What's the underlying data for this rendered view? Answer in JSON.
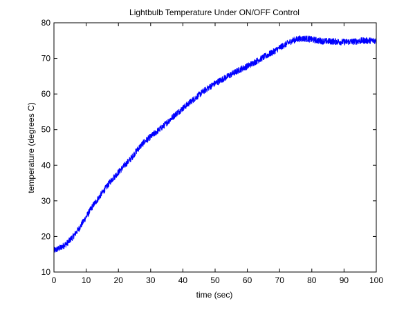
{
  "chart_data": {
    "type": "line",
    "title": "Lightbulb Temperature Under ON/OFF Control",
    "xlabel": "time (sec)",
    "ylabel": "temperature (degrees C)",
    "xlim": [
      0,
      100
    ],
    "ylim": [
      10,
      80
    ],
    "xticks": [
      0,
      10,
      20,
      30,
      40,
      50,
      60,
      70,
      80,
      90,
      100
    ],
    "yticks": [
      10,
      20,
      30,
      40,
      50,
      60,
      70,
      80
    ],
    "grid": false,
    "legend": "none",
    "line_color": "#0000ff",
    "series": [
      {
        "x": [
          0,
          2,
          4,
          6,
          8,
          10,
          12,
          14,
          16,
          18,
          20,
          22,
          24,
          26,
          28,
          30,
          32,
          34,
          36,
          38,
          40,
          42,
          44,
          46,
          48,
          50,
          52,
          54,
          56,
          58,
          60,
          62,
          64,
          66,
          68,
          70,
          72,
          74,
          76,
          78,
          80,
          82,
          84,
          86,
          88,
          90,
          92,
          94,
          96,
          98,
          100
        ],
        "y": [
          16,
          16.8,
          18,
          20,
          22.5,
          25.5,
          28.5,
          31,
          33.5,
          36,
          38,
          40,
          42,
          44.5,
          46.5,
          48,
          49.5,
          51,
          52.8,
          54.5,
          56,
          57.5,
          59,
          60.5,
          61.8,
          63,
          64,
          65,
          66,
          67,
          67.8,
          68.8,
          69.8,
          70.8,
          71.8,
          73,
          74,
          75,
          75.5,
          75.6,
          75.3,
          75,
          74.8,
          74.8,
          74.7,
          74.6,
          74.7,
          74.8,
          75,
          75,
          75
        ]
      }
    ]
  }
}
